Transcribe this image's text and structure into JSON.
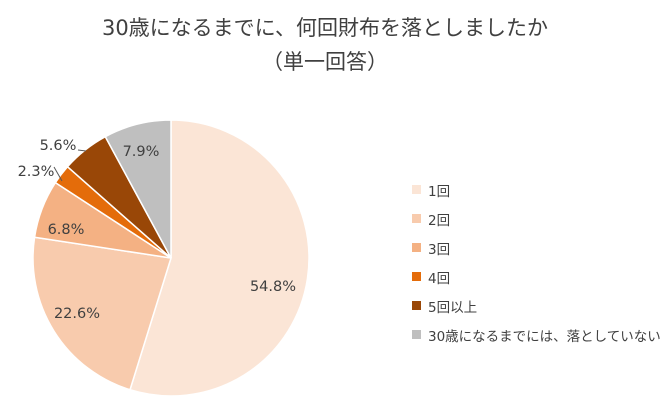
{
  "chart_data": {
    "type": "pie",
    "title": "30歳になるまでに、何回財布を落としましたか",
    "subtitle": "（単一回答）",
    "categories": [
      "1回",
      "2回",
      "3回",
      "4回",
      "5回以上",
      "30歳になるまでには、落としていない"
    ],
    "values": [
      54.8,
      22.6,
      6.8,
      2.3,
      5.6,
      7.9
    ],
    "value_labels": [
      "54.8%",
      "22.6%",
      "6.8%",
      "2.3%",
      "5.6%",
      "7.9%"
    ],
    "colors": [
      "#FBE5D6",
      "#F8CBAD",
      "#F4B183",
      "#E46C0A",
      "#994707",
      "#BFBFBF"
    ],
    "start": "12 o'clock",
    "direction": "clockwise",
    "legend_position": "right"
  }
}
